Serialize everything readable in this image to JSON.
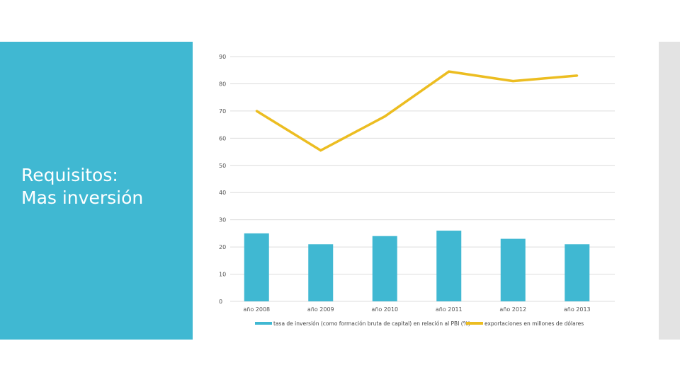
{
  "slide": {
    "title_line1": "Requisitos:",
    "title_line2": "Mas inversión",
    "panel_color": "#40b8d2"
  },
  "chart_data": {
    "type": "bar",
    "categories": [
      "año 2008",
      "año 2009",
      "año 2010",
      "año 2011",
      "año 2012",
      "año 2013"
    ],
    "series": [
      {
        "name": "tasa de inversión (como formación bruta de capital) en relación al PBI (%)",
        "type": "bar",
        "color": "#40b8d2",
        "values": [
          25,
          21,
          24,
          26,
          23,
          21
        ]
      },
      {
        "name": "exportaciones en millones de dólares",
        "type": "line",
        "color": "#ecbd21",
        "values": [
          70,
          55.5,
          68,
          84.5,
          81,
          83
        ]
      }
    ],
    "yticks": [
      "0",
      "10",
      "20",
      "30",
      "40",
      "50",
      "60",
      "70",
      "80",
      "90"
    ],
    "ylim": [
      0,
      90
    ],
    "grid": true,
    "legend_position": "bottom"
  }
}
